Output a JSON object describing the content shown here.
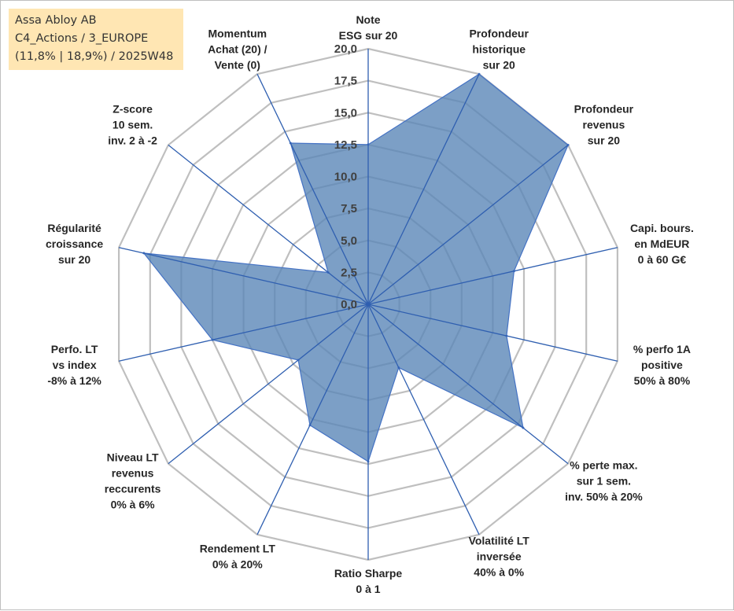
{
  "info_box": {
    "line1": "Assa Abloy AB",
    "line2": "C4_Actions / 3_EUROPE",
    "line3": "(11,8% | 18,9%) / 2025W48"
  },
  "colors": {
    "fill": "#5b87b8",
    "fill_opacity": 0.8,
    "series_line": "#4472c4",
    "spoke": "#2f5fb0",
    "grid": "#bfbfbf",
    "info_box_bg": "#ffe6b3"
  },
  "chart_data": {
    "type": "radar",
    "title": "",
    "rmin": 0,
    "rmax": 20,
    "ticks": [
      "0,0",
      "2,5",
      "5,0",
      "7,5",
      "10,0",
      "12,5",
      "15,0",
      "17,5",
      "20,0"
    ],
    "grid": true,
    "legend": "none",
    "categories": [
      [
        "Note",
        "ESG sur 20"
      ],
      [
        "Profondeur",
        "historique",
        "sur 20"
      ],
      [
        "Profondeur",
        "revenus",
        "sur 20"
      ],
      [
        "Capi. bours.",
        "en MdEUR",
        "0 à 60 G€"
      ],
      [
        "% perfo 1A",
        "positive",
        "50% à 80%"
      ],
      [
        "% perte max.",
        "sur 1 sem.",
        "inv. 50% à 20%"
      ],
      [
        "Volatilité LT",
        "inversée",
        "40% à 0%"
      ],
      [
        "Ratio Sharpe",
        "0 à 1"
      ],
      [
        "Rendement LT",
        "0% à 20%"
      ],
      [
        "Niveau LT",
        "revenus",
        "reccurents",
        "0% à 6%"
      ],
      [
        "Perfo. LT",
        "vs index",
        "-8% à 12%"
      ],
      [
        "Régularité",
        "croissance",
        "sur 20"
      ],
      [
        "Z-score",
        "10 sem.",
        "inv. 2 à -2"
      ],
      [
        "Momentum",
        "Achat (20) /",
        "Vente (0)"
      ]
    ],
    "series": [
      {
        "values": [
          12.5,
          20.0,
          20.0,
          11.7,
          11.1,
          15.5,
          5.5,
          12.3,
          10.5,
          7.0,
          12.5,
          18.0,
          4.0,
          14.0
        ]
      }
    ]
  }
}
